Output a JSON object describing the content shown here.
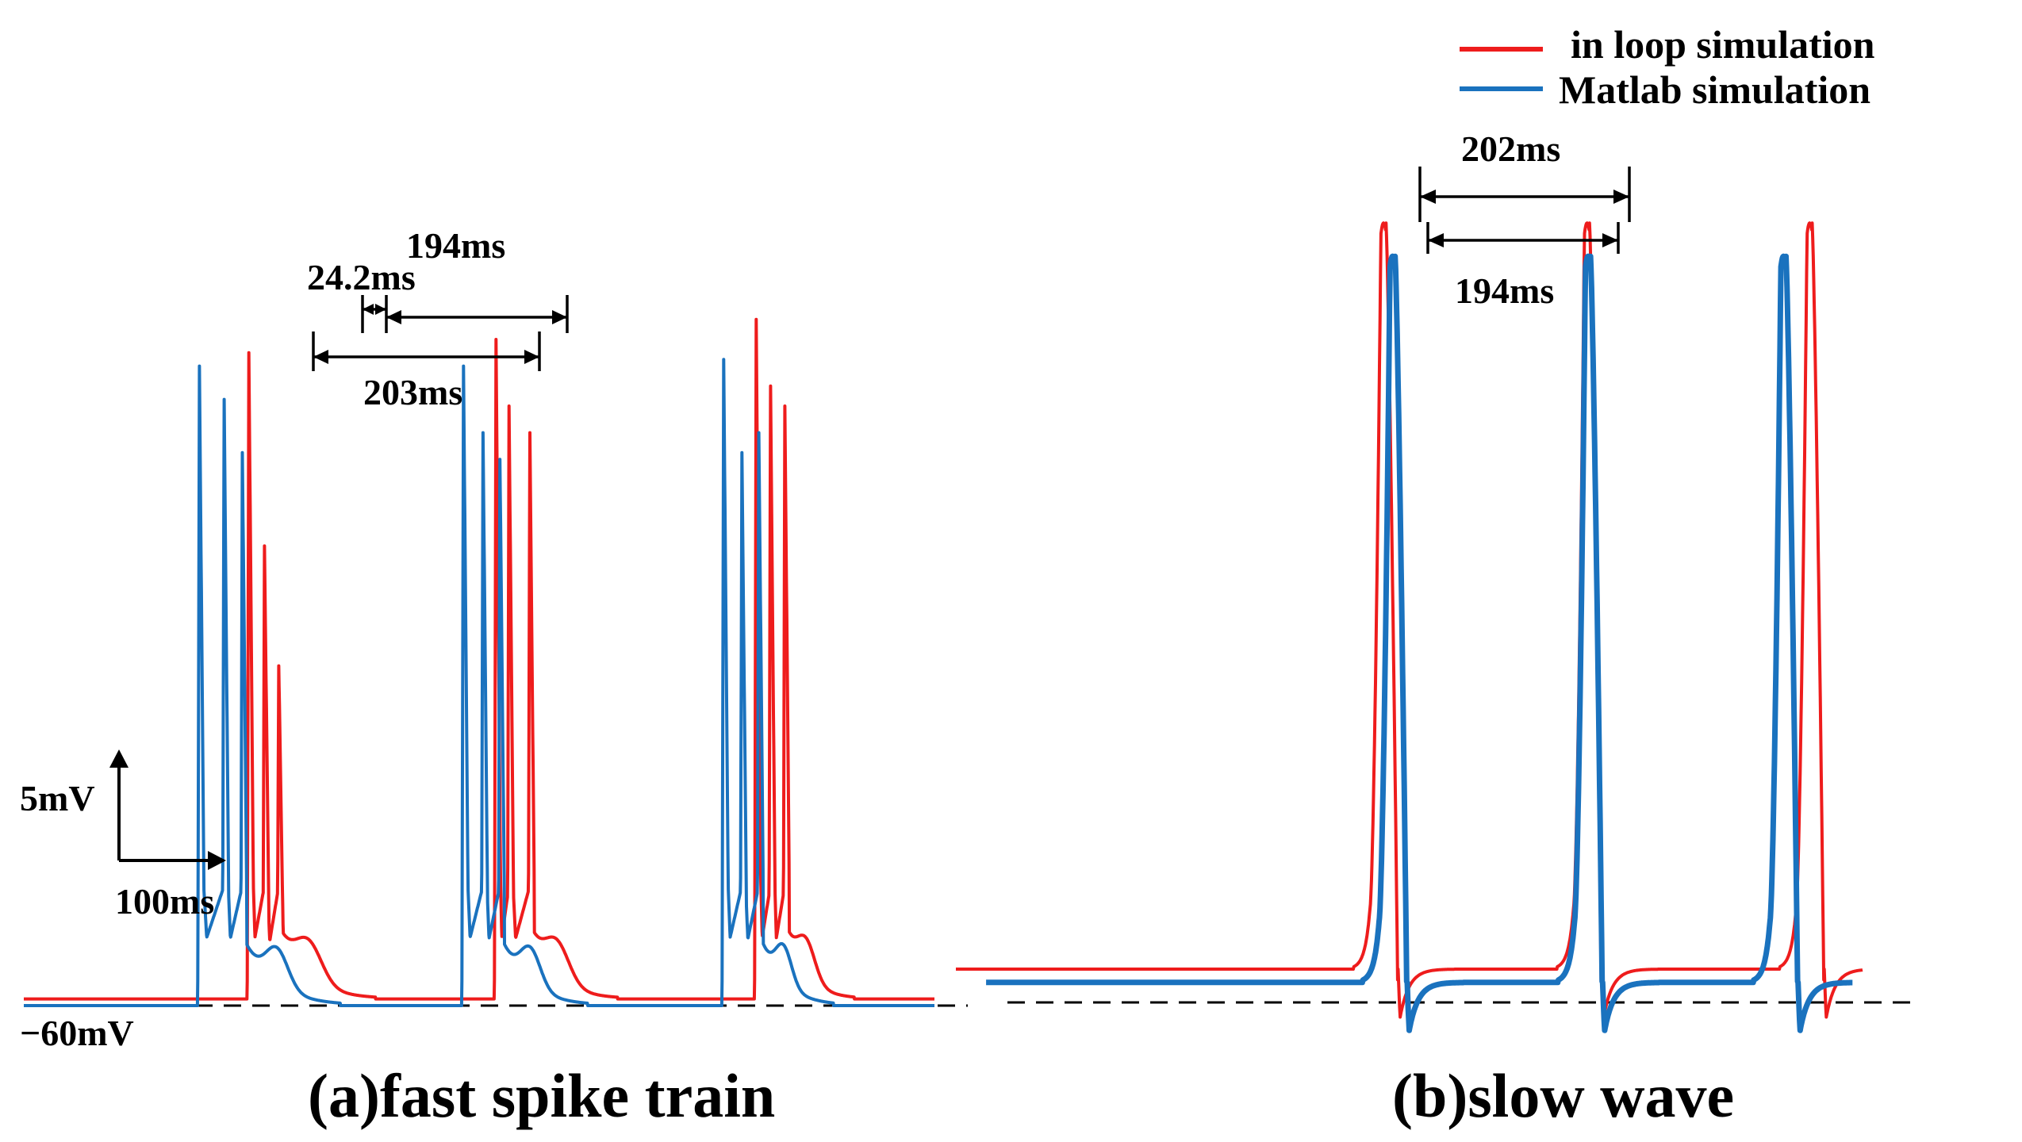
{
  "chart_data": {
    "type": "line",
    "legend": {
      "position": "top-right",
      "entries": [
        {
          "name": "in loop simulation",
          "color": "#ee1c1c"
        },
        {
          "name": "Matlab simulation",
          "color": "#1a72be"
        }
      ]
    },
    "scale_bar": {
      "voltage": "5mV",
      "time": "100ms"
    },
    "baseline_label": "−60mV",
    "panels": [
      {
        "id": "a",
        "caption": "(a)fast spike train",
        "annotations": [
          "24.2ms",
          "194ms",
          "203ms"
        ],
        "series": [
          {
            "name": "in loop simulation",
            "color": "#ee1c1c",
            "rest_mV": 0.1,
            "bursts": [
              {
                "t_ms": 173,
                "spikes": [
                  [
                    0,
                    9.8
                  ],
                  [
                    12,
                    6.9
                  ],
                  [
                    23,
                    5.1
                  ]
                ],
                "after_ms": 45,
                "hump_mV": 0.1,
                "hump_ms": 26,
                "hump_t_ms": 4
              },
              {
                "t_ms": 363,
                "spikes": [
                  [
                    0,
                    10.0
                  ],
                  [
                    10,
                    9.0
                  ],
                  [
                    26,
                    8.6
                  ]
                ],
                "after_ms": 40,
                "hump_mV": 0.1,
                "hump_ms": 24,
                "hump_t_ms": 3
              },
              {
                "t_ms": 563,
                "spikes": [
                  [
                    0,
                    10.3
                  ],
                  [
                    11,
                    9.3
                  ],
                  [
                    22,
                    9.0
                  ]
                ],
                "after_ms": 32,
                "hump_mV": 0.1,
                "hump_ms": 18,
                "hump_t_ms": 2
              }
            ]
          },
          {
            "name": "Matlab simulation",
            "color": "#1a72be",
            "rest_mV": 0,
            "bursts": [
              {
                "t_ms": 135,
                "spikes": [
                  [
                    0,
                    9.6
                  ],
                  [
                    19,
                    9.1
                  ],
                  [
                    33,
                    8.3
                  ]
                ],
                "after_ms": 50,
                "hump_mV": 0.1,
                "hump_ms": 22,
                "hump_t_ms": 10
              },
              {
                "t_ms": 338,
                "spikes": [
                  [
                    0,
                    9.6
                  ],
                  [
                    15,
                    8.6
                  ],
                  [
                    28,
                    8.2
                  ]
                ],
                "after_ms": 44,
                "hump_mV": 0.1,
                "hump_ms": 20,
                "hump_t_ms": 8
              },
              {
                "t_ms": 538,
                "spikes": [
                  [
                    0,
                    9.7
                  ],
                  [
                    14,
                    8.3
                  ],
                  [
                    27,
                    8.6
                  ]
                ],
                "after_ms": 38,
                "hump_mV": 0.1,
                "hump_ms": 16,
                "hump_t_ms": 6
              }
            ]
          }
        ]
      },
      {
        "id": "b",
        "caption": "(b)slow wave",
        "annotations": [
          "202ms",
          "194ms"
        ],
        "series": [
          {
            "name": "in loop simulation",
            "color": "#ee1c1c",
            "rest_mV": 0.5,
            "peaks_ms": [
              1125,
              1327,
              1548
            ],
            "peak_mV": 11.7
          },
          {
            "name": "Matlab simulation",
            "color": "#1a72be",
            "rest_mV": 0.3,
            "peaks_ms": [
              1134,
              1328,
              1522
            ],
            "peak_mV": 11.2
          }
        ]
      }
    ]
  }
}
